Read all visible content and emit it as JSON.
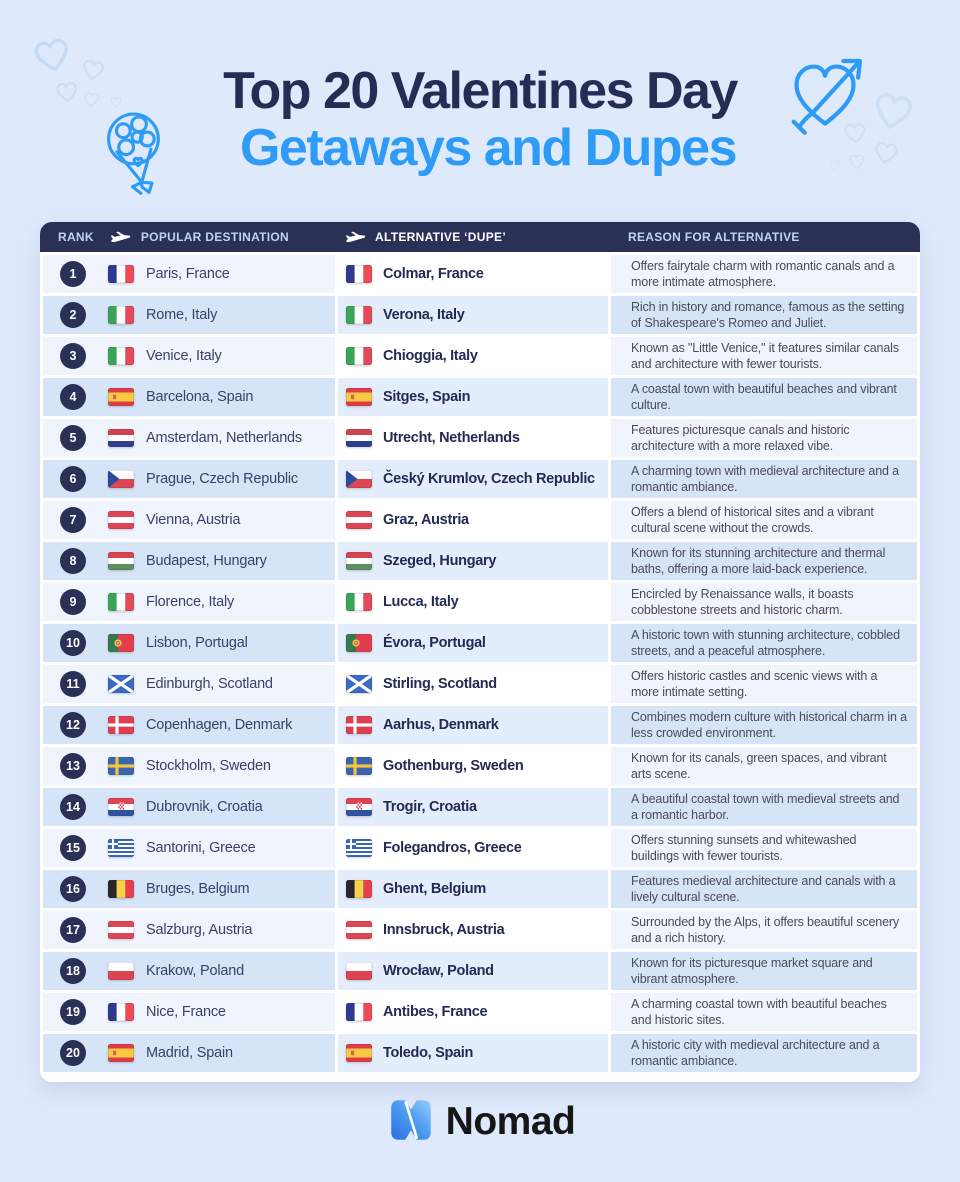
{
  "title": {
    "line1": "Top 20 Valentines Day",
    "line2": "Getaways and Dupes"
  },
  "table": {
    "headers": {
      "rank": "RANK",
      "popular": "POPULAR DESTINATION",
      "alternative": "ALTERNATIVE ‘DUPE’",
      "reason": "REASON FOR ALTERNATIVE"
    },
    "rows": [
      {
        "rank": "1",
        "popular": "Paris, France",
        "popular_flag": "fr",
        "alternative": "Colmar, France",
        "alternative_flag": "fr",
        "reason": "Offers fairytale charm with romantic canals and a more intimate atmosphere."
      },
      {
        "rank": "2",
        "popular": "Rome, Italy",
        "popular_flag": "it",
        "alternative": "Verona, Italy",
        "alternative_flag": "it",
        "reason": "Rich in history and romance, famous as the setting of Shakespeare's Romeo and Juliet."
      },
      {
        "rank": "3",
        "popular": "Venice, Italy",
        "popular_flag": "it",
        "alternative": "Chioggia, Italy",
        "alternative_flag": "it",
        "reason": "Known as \"Little Venice,\" it features similar canals and architecture with fewer tourists."
      },
      {
        "rank": "4",
        "popular": "Barcelona, Spain",
        "popular_flag": "es",
        "alternative": "Sitges, Spain",
        "alternative_flag": "es",
        "reason": "A coastal town with beautiful beaches and vibrant culture."
      },
      {
        "rank": "5",
        "popular": "Amsterdam, Netherlands",
        "popular_flag": "nl",
        "alternative": "Utrecht, Netherlands",
        "alternative_flag": "nl",
        "reason": "Features picturesque canals and historic architecture with a more relaxed vibe."
      },
      {
        "rank": "6",
        "popular": "Prague, Czech Republic",
        "popular_flag": "cz",
        "alternative": "Český Krumlov, Czech Republic",
        "alternative_flag": "cz",
        "reason": "A charming town with medieval architecture and a romantic ambiance."
      },
      {
        "rank": "7",
        "popular": "Vienna, Austria",
        "popular_flag": "at",
        "alternative": "Graz, Austria",
        "alternative_flag": "at",
        "reason": "Offers a blend of historical sites and a vibrant cultural scene without the crowds."
      },
      {
        "rank": "8",
        "popular": "Budapest, Hungary",
        "popular_flag": "hu",
        "alternative": "Szeged, Hungary",
        "alternative_flag": "hu",
        "reason": "Known for its stunning architecture and thermal baths, offering a more laid-back experience."
      },
      {
        "rank": "9",
        "popular": "Florence, Italy",
        "popular_flag": "it",
        "alternative": "Lucca, Italy",
        "alternative_flag": "it",
        "reason": "Encircled by Renaissance walls, it boasts cobblestone streets and historic charm."
      },
      {
        "rank": "10",
        "popular": "Lisbon, Portugal",
        "popular_flag": "pt",
        "alternative": "Évora, Portugal",
        "alternative_flag": "pt",
        "reason": "A historic town with stunning architecture, cobbled streets, and a peaceful atmosphere."
      },
      {
        "rank": "11",
        "popular": "Edinburgh, Scotland",
        "popular_flag": "sct",
        "alternative": "Stirling, Scotland",
        "alternative_flag": "sct",
        "reason": "Offers historic castles and scenic views with a more intimate setting."
      },
      {
        "rank": "12",
        "popular": "Copenhagen, Denmark",
        "popular_flag": "dk",
        "alternative": "Aarhus, Denmark",
        "alternative_flag": "dk",
        "reason": "Combines modern culture with historical charm in a less crowded environment."
      },
      {
        "rank": "13",
        "popular": "Stockholm, Sweden",
        "popular_flag": "se",
        "alternative": "Gothenburg, Sweden",
        "alternative_flag": "se",
        "reason": "Known for its canals, green spaces, and vibrant arts scene."
      },
      {
        "rank": "14",
        "popular": "Dubrovnik, Croatia",
        "popular_flag": "hr",
        "alternative": "Trogir, Croatia",
        "alternative_flag": "hr",
        "reason": "A beautiful coastal town with medieval streets and a romantic harbor."
      },
      {
        "rank": "15",
        "popular": "Santorini, Greece",
        "popular_flag": "gr",
        "alternative": "Folegandros, Greece",
        "alternative_flag": "gr",
        "reason": "Offers stunning sunsets and whitewashed buildings with fewer tourists."
      },
      {
        "rank": "16",
        "popular": "Bruges, Belgium",
        "popular_flag": "be",
        "alternative": "Ghent, Belgium",
        "alternative_flag": "be",
        "reason": "Features medieval architecture and canals with a lively cultural scene."
      },
      {
        "rank": "17",
        "popular": "Salzburg, Austria",
        "popular_flag": "at",
        "alternative": "Innsbruck, Austria",
        "alternative_flag": "at",
        "reason": "Surrounded by the Alps, it offers beautiful scenery and a rich history."
      },
      {
        "rank": "18",
        "popular": "Krakow, Poland",
        "popular_flag": "pl",
        "alternative": "Wrocław, Poland",
        "alternative_flag": "pl",
        "reason": "Known for its picturesque market square and vibrant atmosphere."
      },
      {
        "rank": "19",
        "popular": "Nice, France",
        "popular_flag": "fr",
        "alternative": "Antibes, France",
        "alternative_flag": "fr",
        "reason": "A charming coastal town with beautiful beaches and historic sites."
      },
      {
        "rank": "20",
        "popular": "Madrid, Spain",
        "popular_flag": "es",
        "alternative": "Toledo, Spain",
        "alternative_flag": "es",
        "reason": "A historic city with medieval architecture and a romantic ambiance."
      }
    ]
  },
  "footer": {
    "brand": "Nomad"
  },
  "icons": {
    "plane": "plane-icon",
    "bouquet": "bouquet-icon",
    "heart_arrow": "heart-arrow-icon",
    "heart_outline": "heart-outline-icon",
    "brand_glyph": "nomad-n-icon"
  },
  "colors": {
    "background": "#dfe9fc",
    "navy": "#2b3057",
    "accent_blue": "#2e9cf6",
    "row_light": "#eff4fd",
    "row_blue": "#d6e4f8",
    "row_mid_light": "#ffffff",
    "row_mid_blue": "#e4edfc",
    "brand_text": "#161616"
  }
}
